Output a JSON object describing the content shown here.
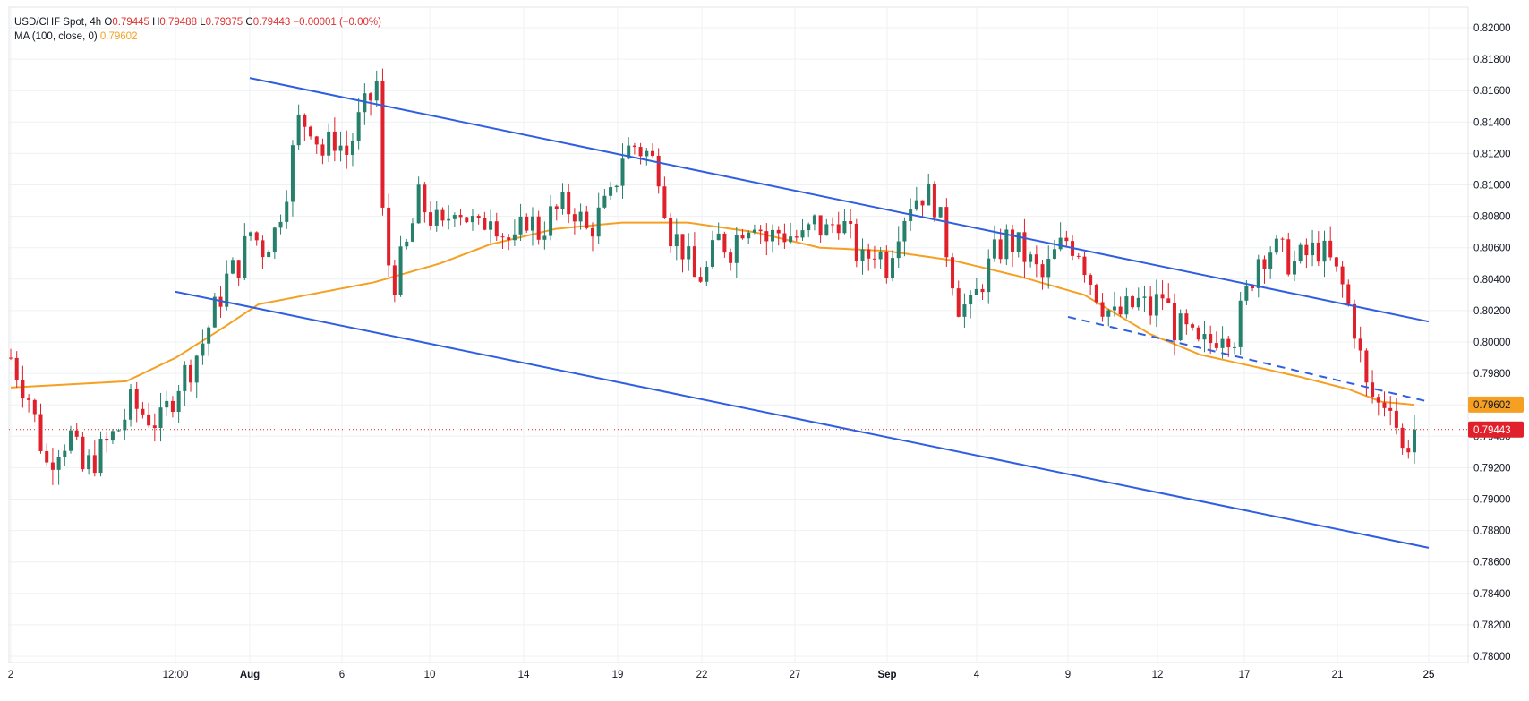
{
  "header": {
    "symbol": "USD/CHF Spot, 4h",
    "open_label": "O",
    "open": "0.79445",
    "high_label": "H",
    "high": "0.79488",
    "low_label": "L",
    "low": "0.79375",
    "close_label": "C",
    "close": "0.79443",
    "change": "−0.00001 (−0.00%)"
  },
  "indicator": {
    "name": "MA (100, close, 0)",
    "value": "0.79602"
  },
  "colors": {
    "up": "#26806b",
    "down": "#e0202a",
    "ma": "#f5a023",
    "trendline": "#2f5fe0",
    "grid": "#eef0f3",
    "axis_text": "#131722",
    "price_label_bg": "#e0202a"
  },
  "chart_data": {
    "type": "candlestick",
    "ylim": [
      0.7775,
      0.8215
    ],
    "y_ticks": [
      "0.78000",
      "0.78200",
      "0.78400",
      "0.78600",
      "0.78800",
      "0.79000",
      "0.79200",
      "0.79400",
      "0.79600",
      "0.79800",
      "0.80000",
      "0.80200",
      "0.80400",
      "0.80600",
      "0.80800",
      "0.81000",
      "0.81200",
      "0.81400",
      "0.81600",
      "0.81800",
      "0.82000"
    ],
    "x_ticks": [
      "2",
      "25",
      "12:00",
      "Aug",
      "6",
      "10",
      "14",
      "19",
      "22",
      "27",
      "Sep",
      "4",
      "9",
      "12",
      "17",
      "21",
      "25"
    ],
    "bold_x_ticks": [
      "Aug",
      "Sep"
    ],
    "price_labels": {
      "ma_value": "0.79602",
      "last_price": "0.79443"
    },
    "last_price": 0.79443,
    "candle_count": 235,
    "candle_anchors": [
      [
        0,
        0.799
      ],
      [
        3,
        0.7965
      ],
      [
        6,
        0.7922
      ],
      [
        8,
        0.7935
      ],
      [
        10,
        0.794
      ],
      [
        12,
        0.7918
      ],
      [
        15,
        0.793
      ],
      [
        18,
        0.7945
      ],
      [
        20,
        0.796
      ],
      [
        22,
        0.7955
      ],
      [
        25,
        0.7948
      ],
      [
        28,
        0.7975
      ],
      [
        30,
        0.7985
      ],
      [
        32,
        0.8
      ],
      [
        34,
        0.802
      ],
      [
        36,
        0.804
      ],
      [
        38,
        0.805
      ],
      [
        40,
        0.807
      ],
      [
        42,
        0.806
      ],
      [
        44,
        0.807
      ],
      [
        46,
        0.81
      ],
      [
        48,
        0.814
      ],
      [
        50,
        0.814
      ],
      [
        52,
        0.812
      ],
      [
        54,
        0.813
      ],
      [
        56,
        0.812
      ],
      [
        58,
        0.814
      ],
      [
        60,
        0.8155
      ],
      [
        61,
        0.8165
      ],
      [
        62,
        0.808
      ],
      [
        63,
        0.805
      ],
      [
        64,
        0.804
      ],
      [
        66,
        0.806
      ],
      [
        68,
        0.809
      ],
      [
        70,
        0.808
      ],
      [
        72,
        0.807
      ],
      [
        74,
        0.809
      ],
      [
        76,
        0.808
      ],
      [
        78,
        0.807
      ],
      [
        80,
        0.8085
      ],
      [
        82,
        0.807
      ],
      [
        84,
        0.806
      ],
      [
        86,
        0.808
      ],
      [
        88,
        0.807
      ],
      [
        90,
        0.808
      ],
      [
        92,
        0.8085
      ],
      [
        94,
        0.8085
      ],
      [
        96,
        0.807
      ],
      [
        98,
        0.808
      ],
      [
        100,
        0.809
      ],
      [
        102,
        0.812
      ],
      [
        104,
        0.8125
      ],
      [
        106,
        0.812
      ],
      [
        108,
        0.811
      ],
      [
        110,
        0.807
      ],
      [
        112,
        0.806
      ],
      [
        114,
        0.804
      ],
      [
        116,
        0.8045
      ],
      [
        118,
        0.8065
      ],
      [
        120,
        0.806
      ],
      [
        122,
        0.8075
      ],
      [
        124,
        0.808
      ],
      [
        126,
        0.8065
      ],
      [
        128,
        0.807
      ],
      [
        130,
        0.8068
      ],
      [
        132,
        0.8065
      ],
      [
        134,
        0.8075
      ],
      [
        136,
        0.807
      ],
      [
        138,
        0.808
      ],
      [
        140,
        0.8065
      ],
      [
        142,
        0.805
      ],
      [
        144,
        0.806
      ],
      [
        146,
        0.805
      ],
      [
        148,
        0.8075
      ],
      [
        150,
        0.809
      ],
      [
        152,
        0.8095
      ],
      [
        154,
        0.809
      ],
      [
        156,
        0.806
      ],
      [
        158,
        0.8025
      ],
      [
        160,
        0.802
      ],
      [
        162,
        0.804
      ],
      [
        164,
        0.8055
      ],
      [
        166,
        0.8065
      ],
      [
        168,
        0.806
      ],
      [
        170,
        0.805
      ],
      [
        172,
        0.804
      ],
      [
        174,
        0.8055
      ],
      [
        176,
        0.8065
      ],
      [
        178,
        0.806
      ],
      [
        180,
        0.804
      ],
      [
        182,
        0.8025
      ],
      [
        184,
        0.8015
      ],
      [
        186,
        0.802
      ],
      [
        188,
        0.8025
      ],
      [
        190,
        0.802
      ],
      [
        192,
        0.803
      ],
      [
        194,
        0.801
      ],
      [
        196,
        0.8005
      ],
      [
        198,
        0.7995
      ],
      [
        200,
        0.8
      ],
      [
        202,
        0.801
      ],
      [
        204,
        0.8005
      ],
      [
        206,
        0.803
      ],
      [
        208,
        0.8055
      ],
      [
        210,
        0.806
      ],
      [
        212,
        0.8055
      ],
      [
        214,
        0.805
      ],
      [
        216,
        0.8055
      ],
      [
        218,
        0.806
      ],
      [
        220,
        0.805
      ],
      [
        222,
        0.8035
      ],
      [
        224,
        0.801
      ],
      [
        226,
        0.797
      ],
      [
        228,
        0.796
      ],
      [
        230,
        0.7965
      ],
      [
        232,
        0.793
      ],
      [
        234,
        0.7944
      ]
    ],
    "ma_anchors": [
      [
        0,
        0.7971
      ],
      [
        14,
        0.7975
      ],
      [
        20,
        0.799
      ],
      [
        26,
        0.801
      ],
      [
        30,
        0.8024
      ],
      [
        36,
        0.803
      ],
      [
        44,
        0.8038
      ],
      [
        52,
        0.805
      ],
      [
        58,
        0.8062
      ],
      [
        66,
        0.8072
      ],
      [
        74,
        0.8076
      ],
      [
        82,
        0.8076
      ],
      [
        90,
        0.807
      ],
      [
        98,
        0.806
      ],
      [
        106,
        0.8058
      ],
      [
        114,
        0.8052
      ],
      [
        122,
        0.8042
      ],
      [
        130,
        0.803
      ],
      [
        138,
        0.8005
      ],
      [
        144,
        0.7992
      ],
      [
        150,
        0.7985
      ],
      [
        156,
        0.7978
      ],
      [
        162,
        0.797
      ],
      [
        166,
        0.7962
      ],
      [
        170,
        0.796
      ]
    ],
    "trendlines": [
      {
        "name": "channel-upper",
        "style": "solid",
        "p1": [
          "Aug",
          0.8168
        ],
        "p2": [
          "25",
          0.8013
        ]
      },
      {
        "name": "channel-lower",
        "style": "solid",
        "p1": [
          "12:00",
          0.8032
        ],
        "p2": [
          "25",
          0.7869
        ]
      },
      {
        "name": "resistance",
        "style": "dashed",
        "p1": [
          "9",
          0.8016
        ],
        "p2": [
          "25",
          0.7962
        ]
      }
    ]
  }
}
